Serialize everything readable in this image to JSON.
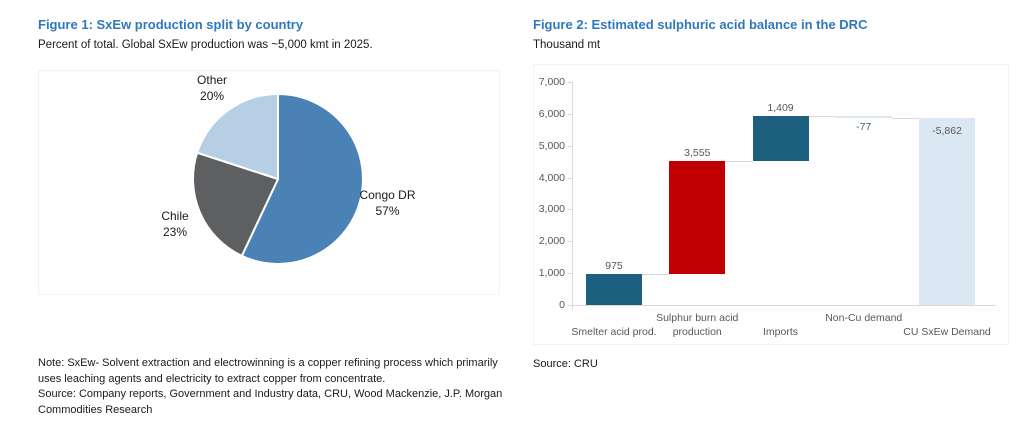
{
  "figure1": {
    "title": "Figure 1: SxEw production split by country",
    "subtitle": "Percent of total. Global SxEw production was ~5,000 kmt in 2025.",
    "note": "Note: SxEw- Solvent extraction and electrowinning is a copper refining process which primarily uses leaching agents and electricity to extract copper from concentrate.",
    "source": "Source: Company reports, Government and Industry data, CRU, Wood Mackenzie, J.P. Morgan Commodities Research"
  },
  "figure2": {
    "title": "Figure 2: Estimated sulphuric acid balance in the DRC",
    "subtitle": "Thousand mt",
    "source": "Source: CRU"
  },
  "colors": {
    "title_blue": "#2e78be",
    "axis_text": "#595959",
    "axis_line": "#d9d9d9",
    "teal_bar": "#1d5f7f",
    "red_bar": "#c00000",
    "light_blue_bar": "#dbe8f4",
    "pie_blue": "#4a82b5",
    "pie_gray": "#5d5f61",
    "pie_light_blue": "#b7cfe4"
  },
  "chart_data": [
    {
      "id": "sxew-pie",
      "type": "pie",
      "title": "Figure 1: SxEw production split by country",
      "units": "Percent of total",
      "start": "top",
      "direction": "clockwise",
      "slices": [
        {
          "label": "Congo DR",
          "pct_label": "57%",
          "value": 57,
          "color": "#4a82b5"
        },
        {
          "label": "Chile",
          "pct_label": "23%",
          "value": 23,
          "color": "#5d5f61"
        },
        {
          "label": "Other",
          "pct_label": "20%",
          "value": 20,
          "color": "#b7cfe4"
        }
      ]
    },
    {
      "id": "acid-waterfall",
      "type": "waterfall",
      "title": "Figure 2: Estimated sulphuric acid balance in the DRC",
      "ylabel": "Thousand mt",
      "ylim": [
        0,
        7000
      ],
      "ytick_step": 1000,
      "grid": false,
      "bars": [
        {
          "category": "Smelter acid prod.",
          "value": 975,
          "display": "975",
          "color": "#1d5f7f",
          "label_side": "top",
          "label_row": "low"
        },
        {
          "category": "Sulphur burn acid production",
          "value": 3555,
          "display": "3,555",
          "color": "#c00000",
          "label_side": "top",
          "label_row": "high"
        },
        {
          "category": "Imports",
          "value": 1409,
          "display": "1,409",
          "color": "#1d5f7f",
          "label_side": "top",
          "label_row": "low"
        },
        {
          "category": "Non-Cu demand",
          "value": -77,
          "display": "-77",
          "color": "#dbe8f4",
          "label_side": "bottom",
          "label_row": "high"
        },
        {
          "category": "CU SxEw Demand",
          "value": -5862,
          "display": "-5,862",
          "color": "#dbe8f4",
          "label_side": "inside",
          "label_row": "low"
        }
      ],
      "running_totals": [
        975,
        4530,
        5939,
        5862,
        0
      ]
    }
  ]
}
